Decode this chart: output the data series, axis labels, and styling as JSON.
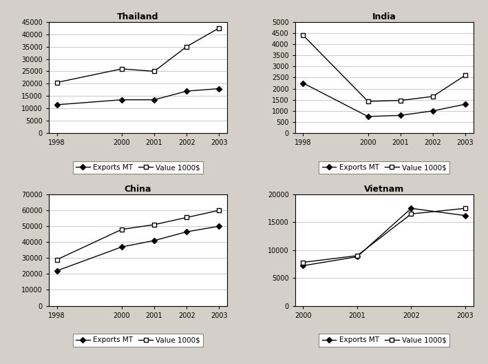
{
  "thailand": {
    "title": "Thailand",
    "years": [
      1998,
      2000,
      2001,
      2002,
      2003
    ],
    "exports_mt": [
      11500,
      13500,
      13500,
      17000,
      18000
    ],
    "value_1000": [
      20500,
      26000,
      25000,
      35000,
      42500
    ],
    "ylim": [
      0,
      45000
    ],
    "yticks": [
      0,
      5000,
      10000,
      15000,
      20000,
      25000,
      30000,
      35000,
      40000,
      45000
    ]
  },
  "india": {
    "title": "India",
    "years": [
      1998,
      2000,
      2001,
      2002,
      2003
    ],
    "exports_mt": [
      2250,
      750,
      800,
      1000,
      1300
    ],
    "value_1000": [
      4400,
      1430,
      1470,
      1650,
      2600
    ],
    "ylim": [
      0,
      5000
    ],
    "yticks": [
      0,
      500,
      1000,
      1500,
      2000,
      2500,
      3000,
      3500,
      4000,
      4500,
      5000
    ]
  },
  "china": {
    "title": "China",
    "years": [
      1998,
      2000,
      2001,
      2002,
      2003
    ],
    "exports_mt": [
      22000,
      37000,
      41000,
      46500,
      50000
    ],
    "value_1000": [
      29000,
      48000,
      51000,
      55500,
      60000
    ],
    "ylim": [
      0,
      70000
    ],
    "yticks": [
      0,
      10000,
      20000,
      30000,
      40000,
      50000,
      60000,
      70000
    ]
  },
  "vietnam": {
    "title": "Vietnam",
    "years": [
      2000,
      2001,
      2002,
      2003
    ],
    "exports_mt": [
      7200,
      8800,
      17500,
      16200
    ],
    "value_1000": [
      7800,
      9000,
      16500,
      17500
    ],
    "ylim": [
      0,
      20000
    ],
    "yticks": [
      0,
      5000,
      10000,
      15000,
      20000
    ]
  },
  "line_color": "#000000",
  "legend_exports": "Exports MT",
  "legend_value": "Value 1000$",
  "fig_bg": "#d4d0c8",
  "panel_bg": "#d4d0c8",
  "plot_bg": "#ffffff",
  "grid_color": "#c0c0c0",
  "title_fontsize": 9,
  "tick_fontsize": 7,
  "legend_fontsize": 7.5
}
